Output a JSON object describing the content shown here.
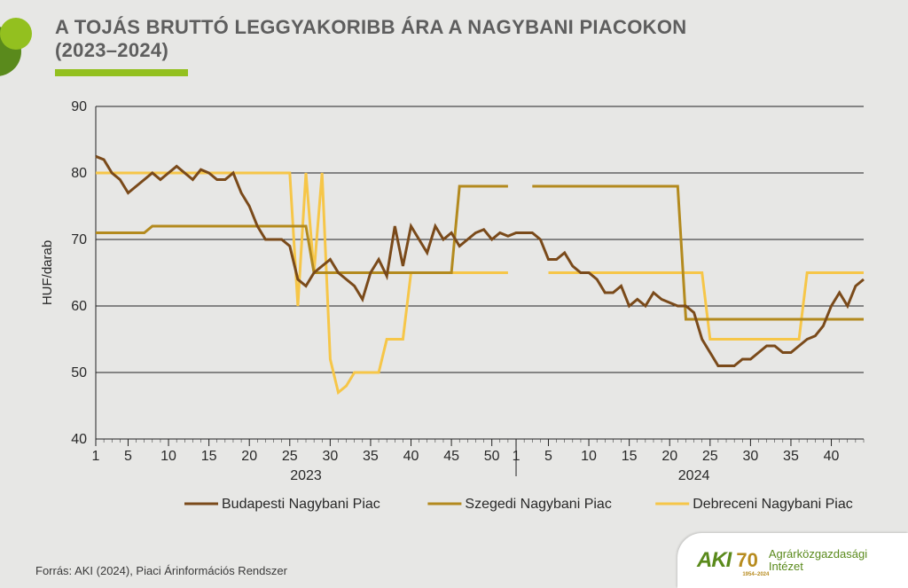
{
  "title_line1": "A TOJÁS BRUTTÓ LEGGYAKORIBB ÁRA A NAGYBANI PIACOKON",
  "title_line2": "(2023–2024)",
  "source_text": "Forrás: AKI (2024), Piaci Árinformációs Rendszer",
  "footer": {
    "brand": "AKI",
    "anniversary": "70",
    "years": "1954–2024",
    "org_line1": "Agrárközgazdasági",
    "org_line2": "Intézet"
  },
  "colors": {
    "bg": "#e7e7e5",
    "title_text": "#5e5e5e",
    "accent": "#93c01f",
    "axis_text": "#282828",
    "grid": "#222222",
    "series_budapest": "#7a4a1a",
    "series_szeged": "#b38a1e",
    "series_debrecen": "#f6c648",
    "logo_green_outer": "#5a8a1c",
    "logo_green_inner": "#93c01f"
  },
  "chart": {
    "type": "line",
    "ylabel": "HUF/darab",
    "ylim": [
      40,
      90
    ],
    "ytick_step": 10,
    "yticks": [
      40,
      50,
      60,
      70,
      80,
      90
    ],
    "x_total_weeks": 96,
    "year_break_at": 52,
    "x_year_labels": [
      "2023",
      "2024"
    ],
    "xticks_2023": [
      1,
      5,
      10,
      15,
      20,
      25,
      30,
      35,
      40,
      45,
      50
    ],
    "xticks_2024": [
      1,
      5,
      10,
      15,
      20,
      25,
      30,
      35,
      40
    ],
    "axis_fontsize": 16,
    "ylabel_fontsize": 15,
    "line_width": 3,
    "grid_on": true,
    "minor_ticks": true,
    "background_color": "#e7e7e5",
    "legend": {
      "position": "bottom",
      "fontsize": 16,
      "items": [
        {
          "label": "Budapesti Nagybani Piac",
          "color": "#7a4a1a"
        },
        {
          "label": "Szegedi Nagybani Piac",
          "color": "#b38a1e"
        },
        {
          "label": "Debreceni Nagybani Piac",
          "color": "#f6c648"
        }
      ]
    },
    "series": {
      "budapest": [
        82.5,
        82,
        80,
        79,
        77,
        78,
        79,
        80,
        79,
        80,
        81,
        80,
        79,
        80.5,
        80,
        79,
        79,
        80,
        77,
        75,
        72,
        70,
        70,
        70,
        69,
        64,
        63,
        65,
        66,
        67,
        65,
        64,
        63,
        61,
        65,
        67,
        64.5,
        72,
        66,
        72,
        70,
        68,
        72,
        70,
        71,
        69,
        70,
        71,
        71.5,
        70,
        71,
        70.5,
        71,
        71,
        71,
        70,
        67,
        67,
        68,
        66,
        65,
        65,
        64,
        62,
        62,
        63,
        60,
        61,
        60,
        62,
        61,
        60.5,
        60,
        60,
        59,
        55,
        53,
        51,
        51,
        51,
        52,
        52,
        53,
        54,
        54,
        53,
        53,
        54,
        55,
        55.5,
        57,
        60,
        62,
        60,
        63,
        64
      ],
      "szeged": [
        71,
        71,
        71,
        71,
        71,
        71,
        71,
        72,
        72,
        72,
        72,
        72,
        72,
        72,
        72,
        72,
        72,
        72,
        72,
        72,
        72,
        72,
        72,
        72,
        72,
        72,
        72,
        65,
        65,
        65,
        65,
        65,
        65,
        65,
        65,
        65,
        65,
        65,
        65,
        65,
        65,
        65,
        65,
        65,
        65,
        78,
        78,
        78,
        78,
        78,
        78,
        78,
        null,
        null,
        78,
        78,
        78,
        78,
        78,
        78,
        78,
        78,
        78,
        78,
        78,
        78,
        78,
        78,
        78,
        78,
        78,
        78,
        78,
        58,
        58,
        58,
        58,
        58,
        58,
        58,
        58,
        58,
        58,
        58,
        58,
        58,
        58,
        58,
        58,
        58,
        58,
        58,
        58,
        58,
        58,
        58
      ],
      "debrecen": [
        80,
        80,
        80,
        80,
        80,
        80,
        80,
        80,
        80,
        80,
        80,
        80,
        80,
        80,
        80,
        80,
        80,
        80,
        80,
        80,
        80,
        80,
        80,
        80,
        80,
        60,
        80,
        65,
        80,
        52,
        47,
        48,
        50,
        50,
        50,
        50,
        55,
        55,
        55,
        65,
        65,
        65,
        65,
        65,
        65,
        65,
        65,
        65,
        65,
        65,
        65,
        65,
        null,
        null,
        null,
        null,
        65,
        65,
        65,
        65,
        65,
        65,
        65,
        65,
        65,
        65,
        65,
        65,
        65,
        65,
        65,
        65,
        65,
        65,
        65,
        65,
        55,
        55,
        55,
        55,
        55,
        55,
        55,
        55,
        55,
        55,
        55,
        55,
        65,
        65,
        65,
        65,
        65,
        65,
        65,
        65
      ]
    }
  }
}
